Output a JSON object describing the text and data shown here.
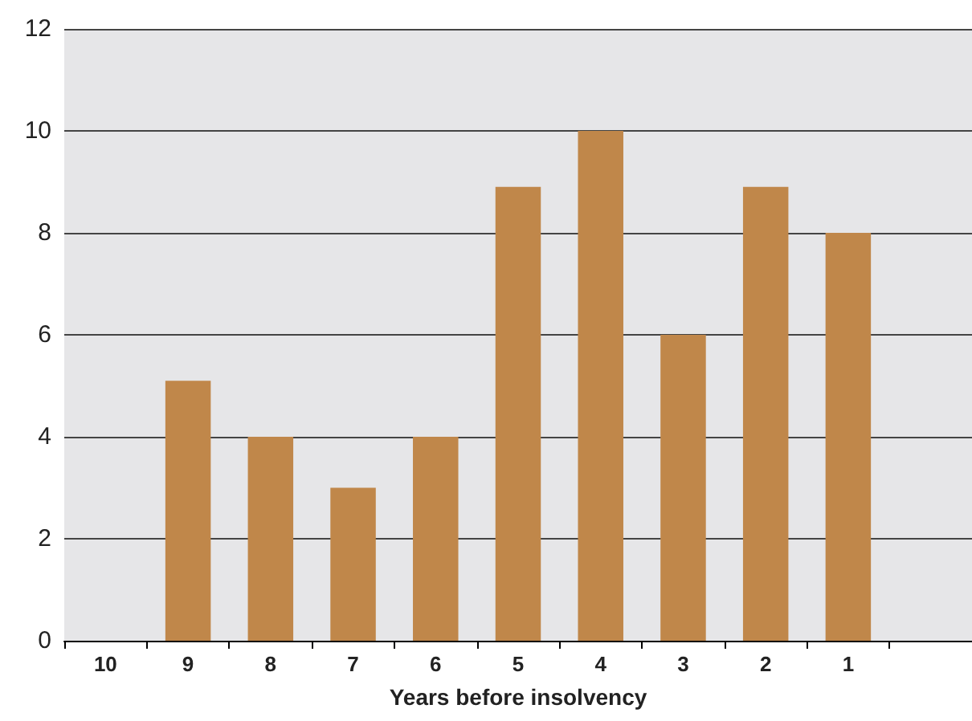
{
  "chart_data": {
    "type": "bar",
    "xlabel": "Years before insolvency",
    "categories": [
      "10",
      "9",
      "8",
      "7",
      "6",
      "5",
      "4",
      "3",
      "2",
      "1",
      null
    ],
    "values": [
      0,
      5.1,
      4,
      3,
      4,
      8.9,
      10,
      6,
      8.9,
      8,
      null
    ],
    "color": "#c0874a",
    "ylim": [
      0,
      12
    ],
    "yticks": [
      0,
      2,
      4,
      6,
      8,
      10,
      12
    ],
    "grid": "y"
  }
}
